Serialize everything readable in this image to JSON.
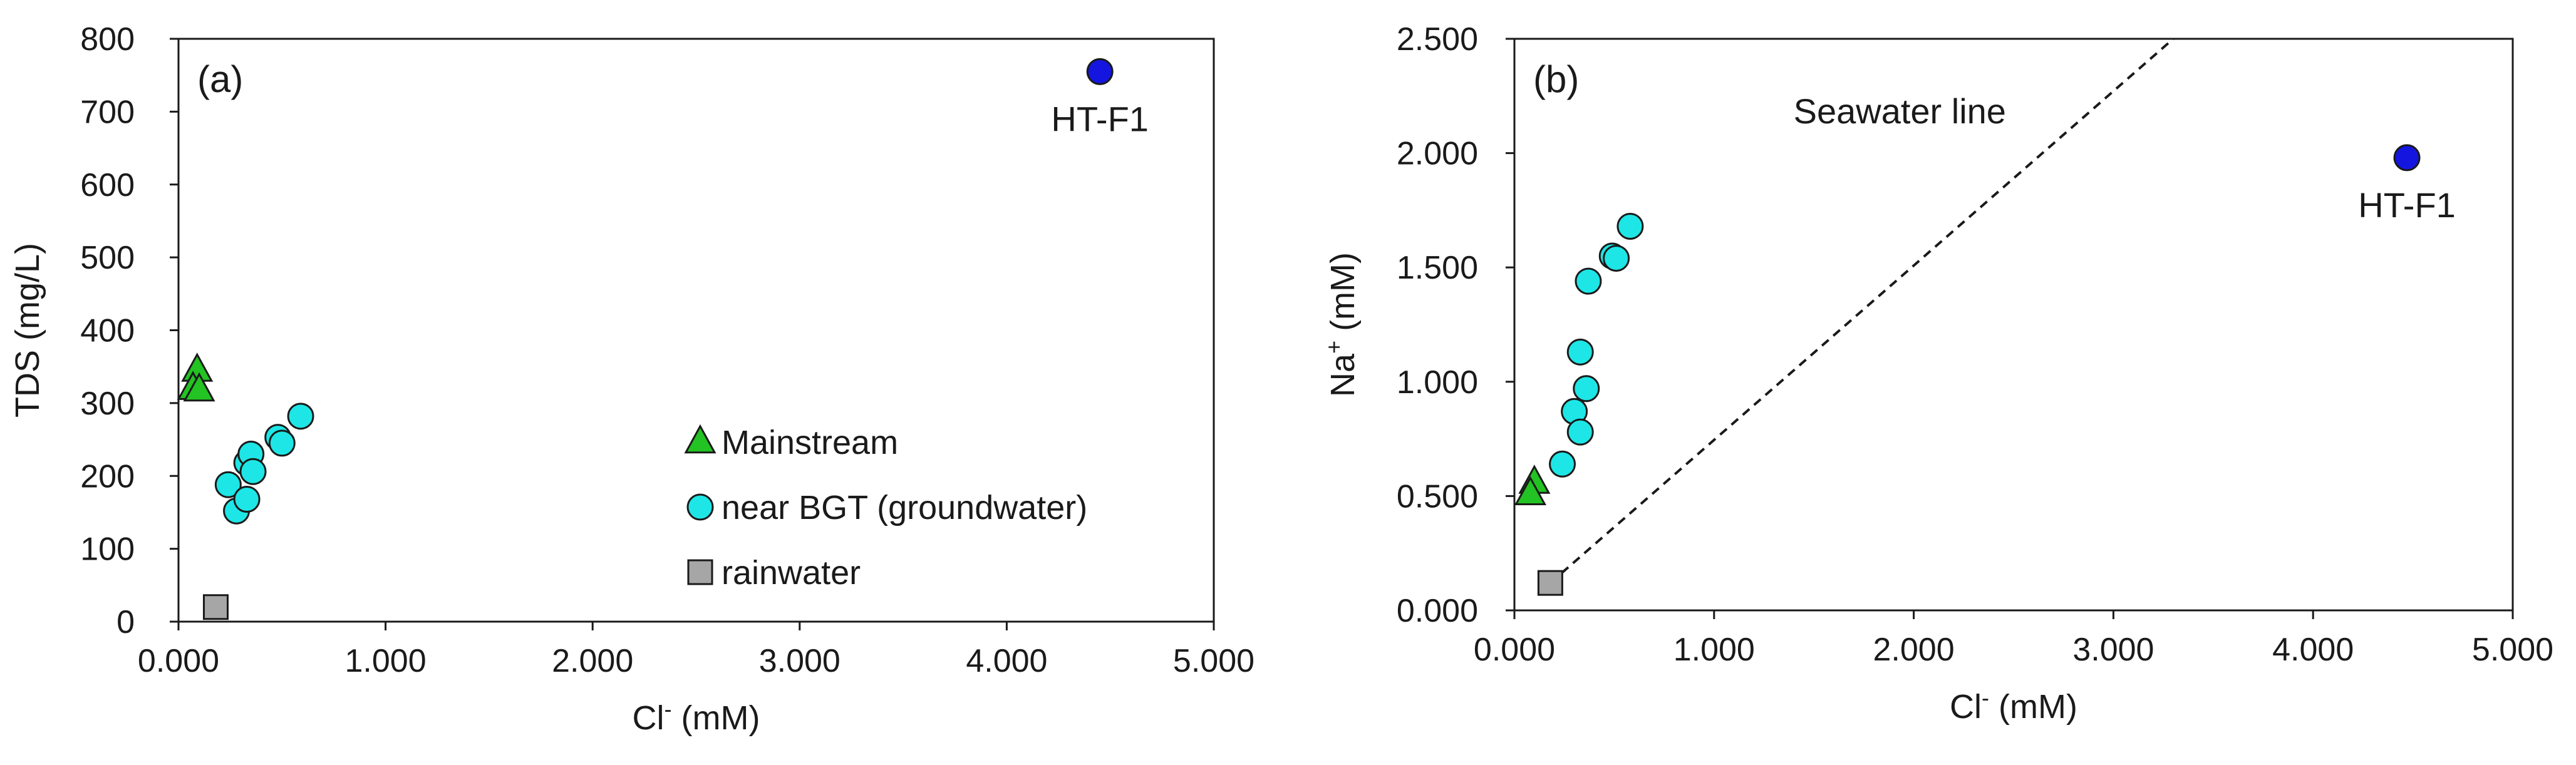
{
  "chart_data": [
    {
      "type": "scatter",
      "panel_label": "(a)",
      "title": "",
      "xlabel": {
        "main": "Cl",
        "sup": "-",
        "unit": " (mM)"
      },
      "ylabel": "TDS (mg/L)",
      "xlim": [
        0,
        5
      ],
      "ylim": [
        0,
        800
      ],
      "x_ticks": [
        0,
        1,
        2,
        3,
        4,
        5
      ],
      "x_tick_labels": [
        "0.000",
        "1.000",
        "2.000",
        "3.000",
        "4.000",
        "5.000"
      ],
      "y_ticks": [
        0,
        100,
        200,
        300,
        400,
        500,
        600,
        700,
        800
      ],
      "y_tick_labels": [
        "0",
        "100",
        "200",
        "300",
        "400",
        "500",
        "600",
        "700",
        "800"
      ],
      "grid": false,
      "legend_position": "bottom-right",
      "series": [
        {
          "name": "Mainstream",
          "marker": "triangle",
          "color": "#22c322",
          "points": [
            [
              0.09,
              345
            ],
            [
              0.07,
              320
            ],
            [
              0.1,
              318
            ]
          ]
        },
        {
          "name": "near BGT (groundwater)",
          "marker": "circle",
          "color": "#1ee6e6",
          "points": [
            [
              0.24,
              188
            ],
            [
              0.28,
              152
            ],
            [
              0.33,
              168
            ],
            [
              0.33,
              218
            ],
            [
              0.35,
              230
            ],
            [
              0.36,
              206
            ],
            [
              0.48,
              253
            ],
            [
              0.5,
              245
            ],
            [
              0.59,
              282
            ]
          ]
        },
        {
          "name": "rainwater",
          "marker": "square",
          "color": "#a6a6a6",
          "points": [
            [
              0.18,
              20
            ]
          ]
        },
        {
          "name": "HT-F1",
          "marker": "circle",
          "color": "#1515e0",
          "in_legend": false,
          "points": [
            [
              4.45,
              755
            ]
          ]
        }
      ],
      "annotations": [
        {
          "text": "HT-F1",
          "x": 4.45,
          "y": 755
        }
      ]
    },
    {
      "type": "scatter",
      "panel_label": "(b)",
      "title": "",
      "xlabel": {
        "main": "Cl",
        "sup": "-",
        "unit": " (mM)"
      },
      "ylabel": {
        "main": "Na",
        "sup": "+",
        "unit": " (mM)"
      },
      "xlim": [
        0,
        5
      ],
      "ylim": [
        0,
        2.5
      ],
      "x_ticks": [
        0,
        1,
        2,
        3,
        4,
        5
      ],
      "x_tick_labels": [
        "0.000",
        "1.000",
        "2.000",
        "3.000",
        "4.000",
        "5.000"
      ],
      "y_ticks": [
        0,
        0.5,
        1,
        1.5,
        2,
        2.5
      ],
      "y_tick_labels": [
        "0.000",
        "0.500",
        "1.000",
        "1.500",
        "2.000",
        "2.500"
      ],
      "grid": false,
      "legend_position": "none",
      "series": [
        {
          "name": "Mainstream",
          "marker": "triangle",
          "color": "#22c322",
          "points": [
            [
              0.1,
              0.56
            ],
            [
              0.08,
              0.51
            ]
          ]
        },
        {
          "name": "near BGT (groundwater)",
          "marker": "circle",
          "color": "#1ee6e6",
          "points": [
            [
              0.24,
              0.64
            ],
            [
              0.3,
              0.87
            ],
            [
              0.33,
              0.78
            ],
            [
              0.33,
              1.13
            ],
            [
              0.36,
              0.97
            ],
            [
              0.37,
              1.44
            ],
            [
              0.49,
              1.55
            ],
            [
              0.51,
              1.54
            ],
            [
              0.58,
              1.68
            ]
          ]
        },
        {
          "name": "rainwater",
          "marker": "square",
          "color": "#a6a6a6",
          "points": [
            [
              0.18,
              0.12
            ]
          ]
        },
        {
          "name": "HT-F1",
          "marker": "circle",
          "color": "#1515e0",
          "points": [
            [
              4.47,
              1.98
            ]
          ]
        }
      ],
      "lines": [
        {
          "name": "Seawater line",
          "style": "dashed",
          "color": "#1a1a1a",
          "x": [
            0.18,
            3.3
          ],
          "y": [
            0.12,
            2.5
          ]
        }
      ],
      "annotations": [
        {
          "text": "Seawater line",
          "x": 1.93,
          "y": 2.18
        },
        {
          "text": "HT-F1",
          "x": 4.47,
          "y": 1.98
        }
      ]
    }
  ]
}
